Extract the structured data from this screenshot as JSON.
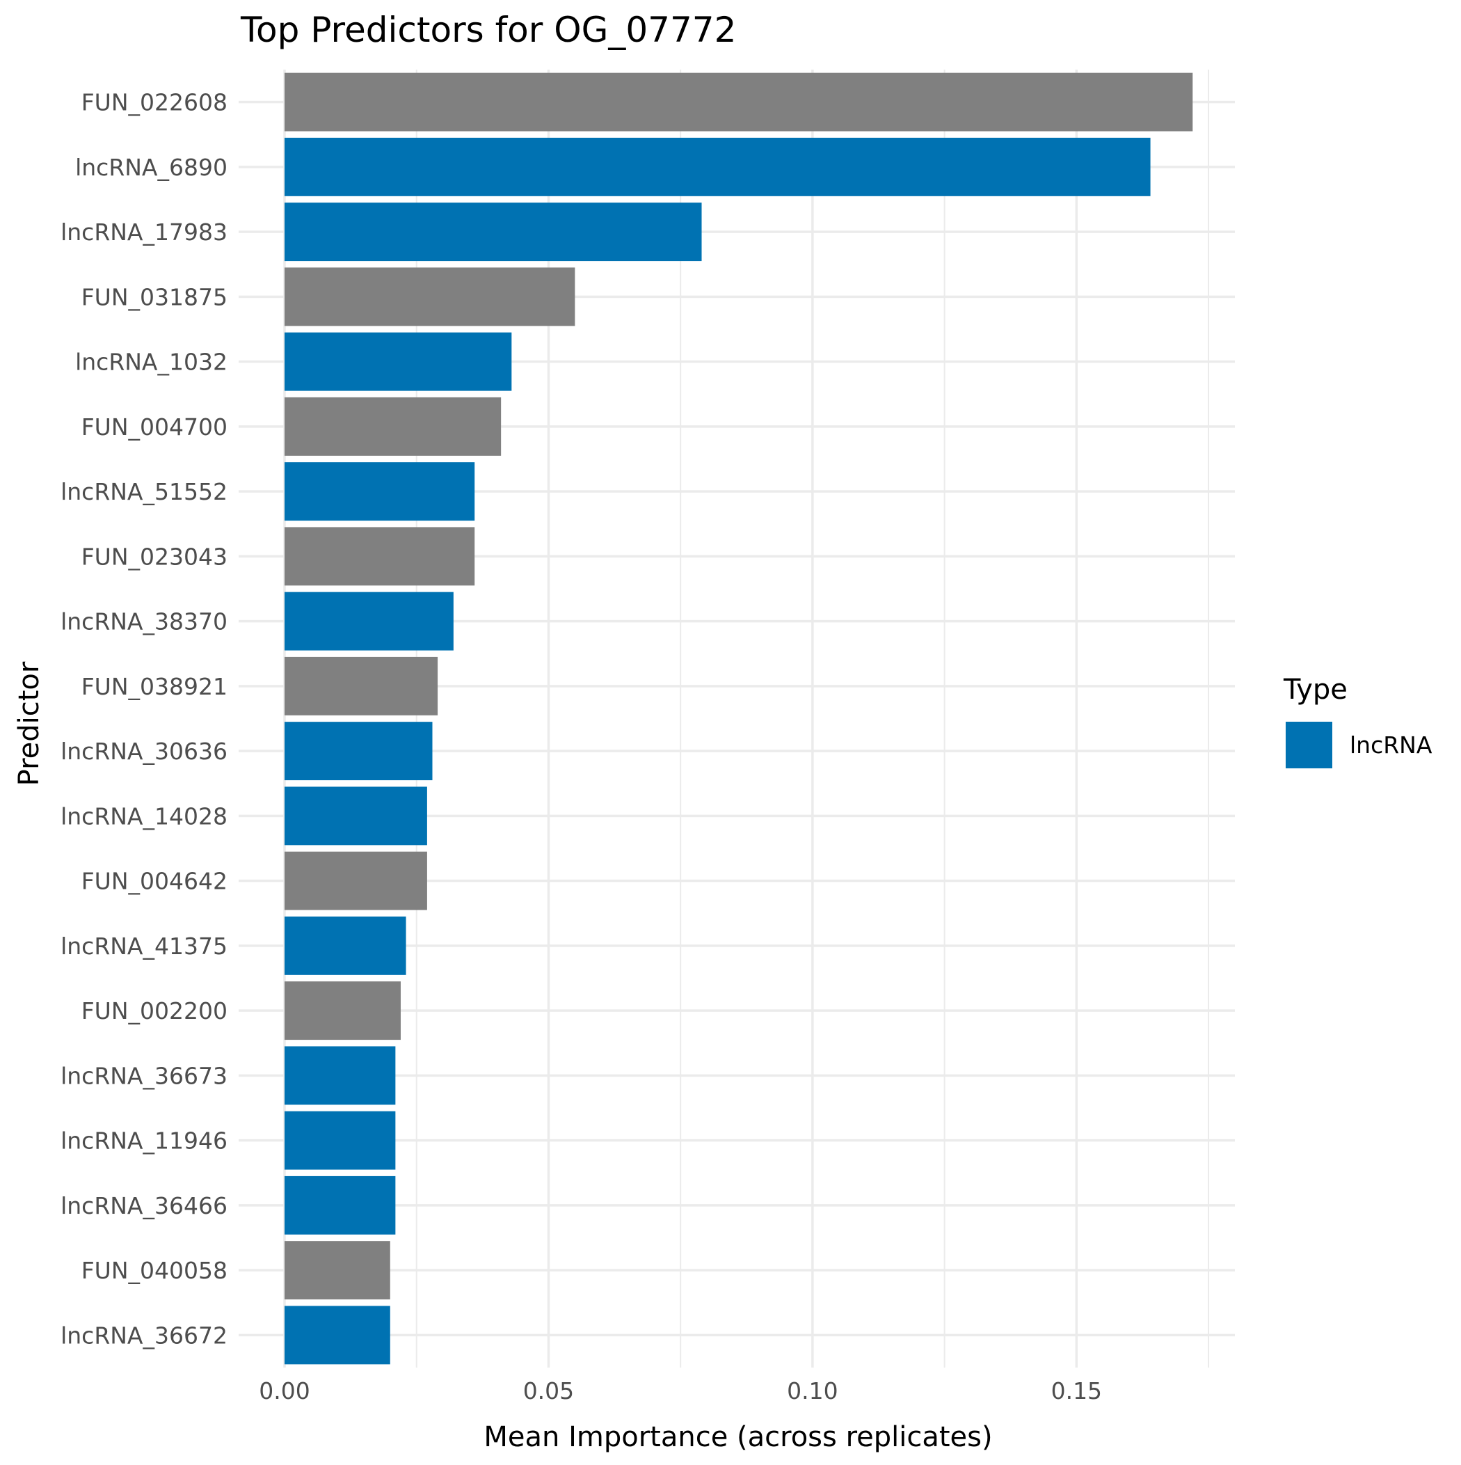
{
  "chart_data": {
    "type": "bar",
    "orientation": "horizontal",
    "title": "Top Predictors for OG_07772",
    "xlabel": "Mean Importance (across replicates)",
    "ylabel": "Predictor",
    "xlim": [
      0,
      0.18
    ],
    "x_ticks": [
      "0.00",
      "0.05",
      "0.10",
      "0.15"
    ],
    "x_tick_values": [
      0,
      0.05,
      0.1,
      0.15
    ],
    "grid": true,
    "legend": {
      "title": "Type",
      "placement": "right",
      "entries": [
        {
          "label": "lncRNA",
          "color": "#0072B2"
        }
      ]
    },
    "colors": {
      "lncRNA": "#0072B2",
      "other": "#808080"
    },
    "categories": [
      "FUN_022608",
      "lncRNA_6890",
      "lncRNA_17983",
      "FUN_031875",
      "lncRNA_1032",
      "FUN_004700",
      "lncRNA_51552",
      "FUN_023043",
      "lncRNA_38370",
      "FUN_038921",
      "lncRNA_30636",
      "lncRNA_14028",
      "FUN_004642",
      "lncRNA_41375",
      "FUN_002200",
      "lncRNA_36673",
      "lncRNA_11946",
      "lncRNA_36466",
      "FUN_040058",
      "lncRNA_36672"
    ],
    "values": [
      0.172,
      0.164,
      0.079,
      0.055,
      0.043,
      0.041,
      0.036,
      0.036,
      0.032,
      0.029,
      0.028,
      0.027,
      0.027,
      0.023,
      0.022,
      0.021,
      0.021,
      0.021,
      0.02,
      0.02
    ],
    "types": [
      "other",
      "lncRNA",
      "lncRNA",
      "other",
      "lncRNA",
      "other",
      "lncRNA",
      "other",
      "lncRNA",
      "other",
      "lncRNA",
      "lncRNA",
      "other",
      "lncRNA",
      "other",
      "lncRNA",
      "lncRNA",
      "lncRNA",
      "other",
      "lncRNA"
    ]
  }
}
